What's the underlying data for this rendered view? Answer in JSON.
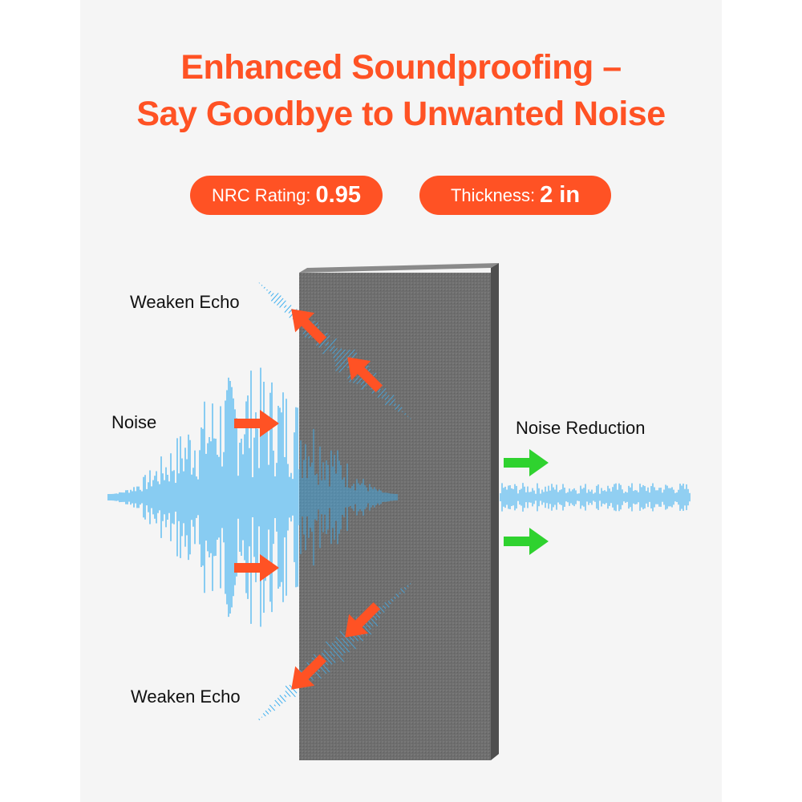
{
  "title": {
    "line1": "Enhanced Soundproofing –",
    "line2": "Say Goodbye to Unwanted Noise"
  },
  "badges": [
    {
      "label": "NRC Rating:",
      "value": "0.95"
    },
    {
      "label": "Thickness:",
      "value": "2 in"
    }
  ],
  "labels": {
    "echo_top": "Weaken Echo",
    "noise": "Noise",
    "noise_reduction": "Noise Reduction",
    "echo_bottom": "Weaken Echo"
  },
  "colors": {
    "accent": "#ff5224",
    "wave": "#3fb0f0",
    "reduction_arrow": "#2fd22f",
    "panel": "#6b6b6b"
  }
}
